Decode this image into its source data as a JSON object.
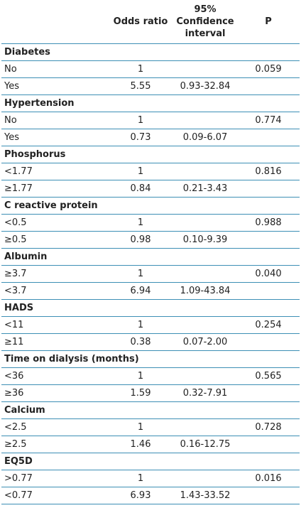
{
  "header": {
    "columns": [
      "Odds ratio",
      "95% Confidence interval",
      "P"
    ]
  },
  "groups": [
    {
      "name": "Diabetes",
      "rows": [
        {
          "label": "No",
          "odds_ratio": "1",
          "p": "0.059"
        },
        {
          "label": "Yes",
          "odds_ratio": "5.55",
          "ci": "0.93-32.84"
        }
      ]
    },
    {
      "name": "Hypertension",
      "rows": [
        {
          "label": "No",
          "odds_ratio": "1",
          "p": "0.774"
        },
        {
          "label": "Yes",
          "odds_ratio": "0.73",
          "ci": "0.09-6.07"
        }
      ]
    },
    {
      "name": "Phosphorus",
      "rows": [
        {
          "label": "<1.77",
          "odds_ratio": "1",
          "p": "0.816"
        },
        {
          "label": "≥1.77",
          "odds_ratio": "0.84",
          "ci": "0.21-3.43"
        }
      ]
    },
    {
      "name": "C reactive protein",
      "rows": [
        {
          "label": "<0.5",
          "odds_ratio": "1",
          "p": "0.988"
        },
        {
          "label": "≥0.5",
          "odds_ratio": "0.98",
          "ci": "0.10-9.39"
        }
      ]
    },
    {
      "name": "Albumin",
      "rows": [
        {
          "label": "≥3.7",
          "odds_ratio": "1",
          "p": "0.040"
        },
        {
          "label": "<3.7",
          "odds_ratio": "6.94",
          "ci": "1.09-43.84"
        }
      ]
    },
    {
      "name": "HADS",
      "rows": [
        {
          "label": "<11",
          "odds_ratio": "1",
          "p": "0.254"
        },
        {
          "label": "≥11",
          "odds_ratio": "0.38",
          "ci": "0.07-2.00"
        }
      ]
    },
    {
      "name": "Time on dialysis (months)",
      "rows": [
        {
          "label": "<36",
          "odds_ratio": "1",
          "p": "0.565"
        },
        {
          "label": "≥36",
          "odds_ratio": "1.59",
          "ci": "0.32-7.91"
        }
      ]
    },
    {
      "name": "Calcium",
      "rows": [
        {
          "label": "<2.5",
          "odds_ratio": "1",
          "p": "0.728"
        },
        {
          "label": "≥2.5",
          "odds_ratio": "1.46",
          "ci": "0.16-12.75"
        }
      ]
    },
    {
      "name": "EQ5D",
      "rows": [
        {
          "label": ">0.77",
          "odds_ratio": "1",
          "p": "0.016"
        },
        {
          "label": "<0.77",
          "odds_ratio": "6.93",
          "ci": "1.43-33.52"
        }
      ]
    }
  ]
}
